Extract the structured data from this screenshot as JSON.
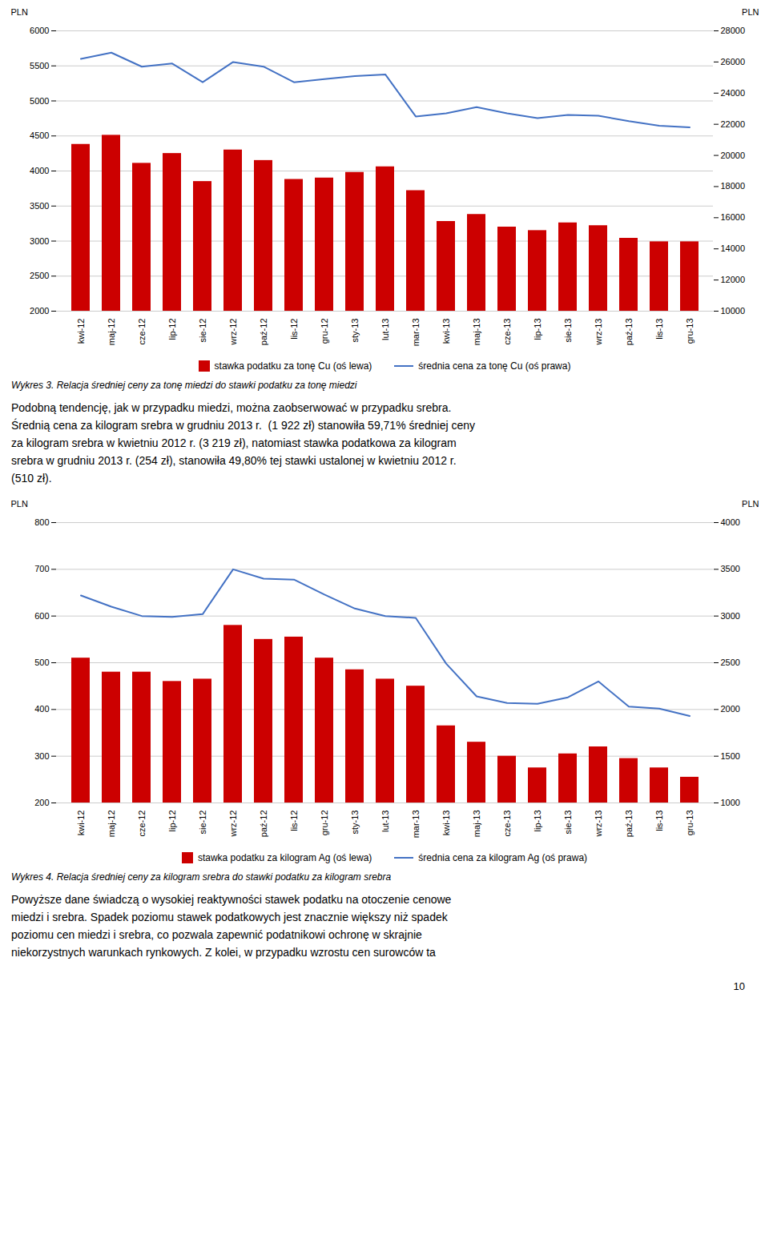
{
  "chart_data": [
    {
      "type": "bar",
      "categories": [
        "kwi-12",
        "maj-12",
        "cze-12",
        "lip-12",
        "sie-12",
        "wrz-12",
        "paź-12",
        "lis-12",
        "gru-12",
        "sty-13",
        "lut-13",
        "mar-13",
        "kwi-13",
        "maj-13",
        "cze-13",
        "lip-13",
        "sie-13",
        "wrz-13",
        "paź-13",
        "lis-13",
        "gru-13"
      ],
      "series": [
        {
          "name": "stawka podatku za tonę Cu (oś lewa)",
          "type": "bar",
          "color": "#cc0000",
          "values": [
            4380,
            4510,
            4110,
            4250,
            3850,
            4300,
            4150,
            3880,
            3900,
            3980,
            4060,
            3720,
            3280,
            3380,
            3200,
            3150,
            3260,
            3220,
            3040,
            2990,
            2990
          ]
        },
        {
          "name": "średnia cena za tonę Cu (oś prawa)",
          "type": "line",
          "color": "#4472c4",
          "axis": "y2",
          "values": [
            26200,
            26600,
            25700,
            25900,
            24700,
            26000,
            25700,
            24700,
            24900,
            25100,
            25200,
            22500,
            22700,
            23100,
            22700,
            22400,
            22600,
            22550,
            22200,
            21900,
            21800
          ]
        }
      ],
      "ylabel": "PLN",
      "y2label": "PLN",
      "ylim": [
        2000,
        6000
      ],
      "yticks": [
        2000,
        2500,
        3000,
        3500,
        4000,
        4500,
        5000,
        5500,
        6000
      ],
      "y2lim": [
        10000,
        28000
      ],
      "y2ticks": [
        10000,
        12000,
        14000,
        16000,
        18000,
        20000,
        22000,
        24000,
        26000,
        28000
      ],
      "grid": true,
      "legend": "bottom",
      "caption": "Wykres 3. Relacja średniej ceny za tonę miedzi do stawki podatku za tonę miedzi",
      "annotations": [
        "Podobną tendencję, jak w przypadku miedzi, można zaobserwować w przypadku srebra.",
        "Średnią cena za kilogram srebra w grudniu 2013 r.  (1 922 zł) stanowiła 59,71% średniej ceny",
        "za kilogram srebra w kwietniu 2012 r. (3 219 zł), natomiast stawka podatkowa za kilogram",
        "srebra w grudniu 2013 r. (254 zł), stanowiła 49,80% tej stawki ustalonej w kwietniu 2012 r.",
        "(510 zł)."
      ]
    },
    {
      "type": "bar",
      "categories": [
        "kwi-12",
        "maj-12",
        "cze-12",
        "lip-12",
        "sie-12",
        "wrz-12",
        "paź-12",
        "lis-12",
        "gru-12",
        "sty-13",
        "lut-13",
        "mar-13",
        "kwi-13",
        "maj-13",
        "cze-13",
        "lip-13",
        "sie-13",
        "wrz-13",
        "paź-13",
        "lis-13",
        "gru-13"
      ],
      "series": [
        {
          "name": "stawka podatku za kilogram Ag (oś lewa)",
          "type": "bar",
          "color": "#cc0000",
          "values": [
            510,
            480,
            480,
            460,
            465,
            580,
            550,
            555,
            510,
            485,
            465,
            450,
            365,
            330,
            300,
            275,
            305,
            320,
            295,
            275,
            255
          ]
        },
        {
          "name": "średnia cena za kilogram Ag (oś prawa)",
          "type": "line",
          "color": "#4472c4",
          "axis": "y2",
          "values": [
            3220,
            3100,
            3000,
            2990,
            3020,
            3500,
            3400,
            3390,
            3230,
            3080,
            3000,
            2980,
            2490,
            2140,
            2070,
            2060,
            2130,
            2300,
            2030,
            2010,
            1930
          ]
        }
      ],
      "ylabel": "PLN",
      "y2label": "PLN",
      "ylim": [
        200,
        800
      ],
      "yticks": [
        200,
        300,
        400,
        500,
        600,
        700,
        800
      ],
      "y2lim": [
        1000,
        4000
      ],
      "y2ticks": [
        1000,
        1500,
        2000,
        2500,
        3000,
        3500,
        4000
      ],
      "grid": true,
      "legend": "bottom",
      "caption": "Wykres 4. Relacja średniej ceny za kilogram srebra do stawki podatku za kilogram srebra",
      "annotations": [
        "Powyższe dane świadczą o wysokiej reaktywności stawek podatku na otoczenie cenowe",
        "miedzi i srebra. Spadek poziomu stawek podatkowych jest znacznie większy niż spadek",
        "poziomu cen miedzi i srebra, co pozwala zapewnić podatnikowi ochronę w skrajnie",
        "niekorzystnych warunkach rynkowych. Z kolei, w przypadku wzrostu cen surowców ta"
      ]
    }
  ],
  "page_number": "10"
}
